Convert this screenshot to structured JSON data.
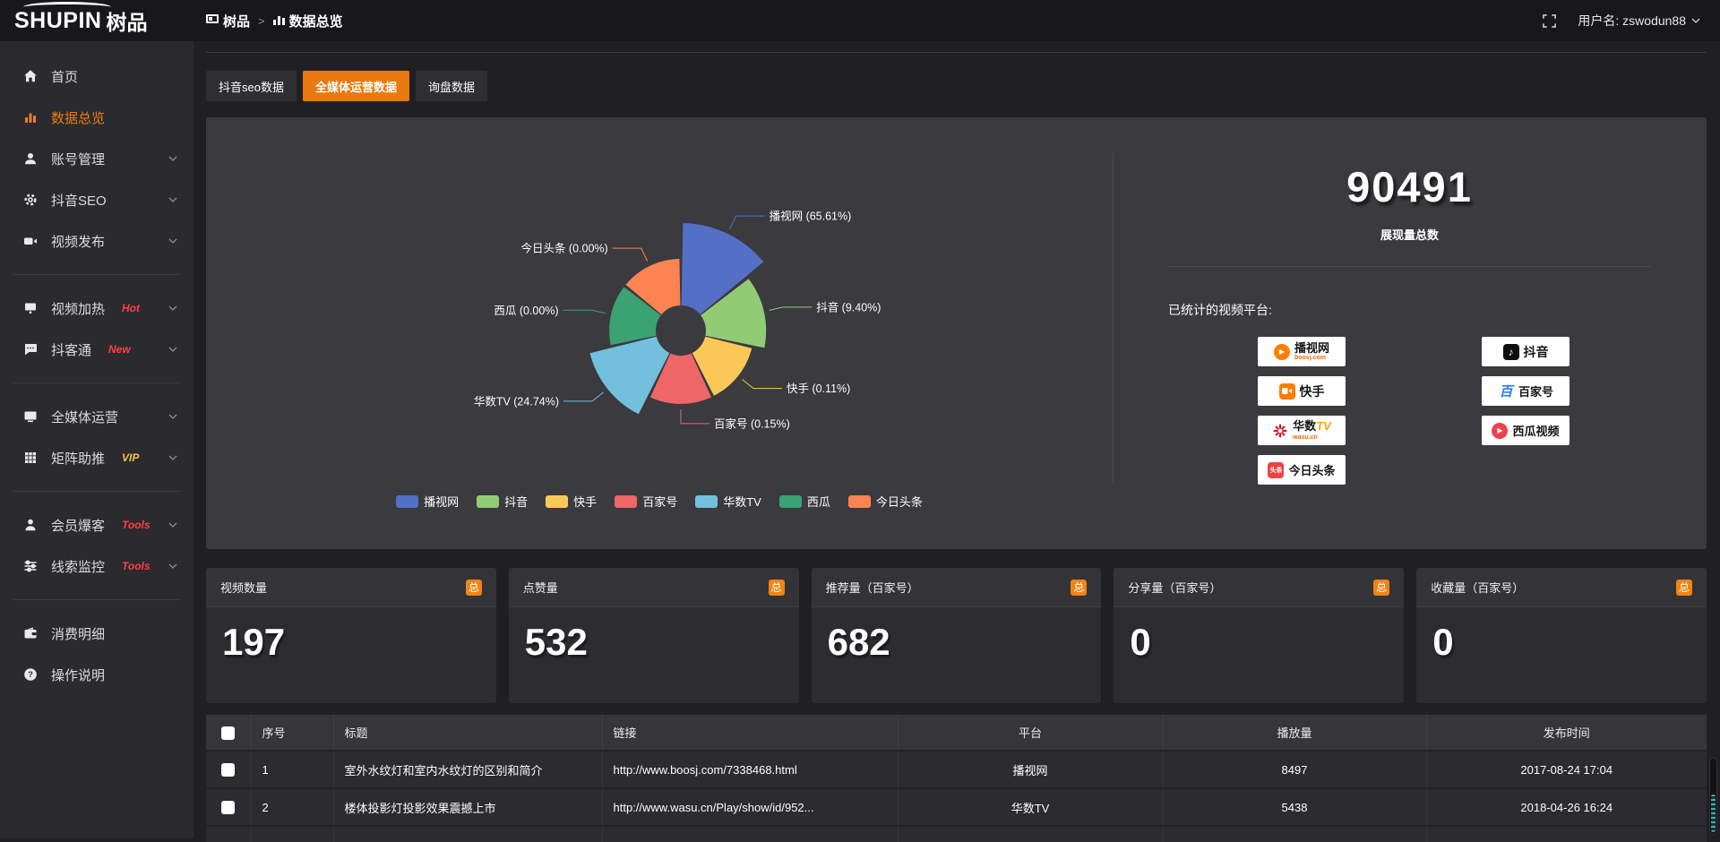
{
  "topbar": {
    "logo_en": "SHUPIN",
    "logo_cn": "树品",
    "breadcrumb": {
      "app": "树品",
      "sep": ">",
      "page": "数据总览"
    },
    "username": "用户名: zswodun88"
  },
  "sidebar": {
    "items": [
      {
        "label": "首页"
      },
      {
        "label": "数据总览"
      },
      {
        "label": "账号管理"
      },
      {
        "label": "抖音SEO"
      },
      {
        "label": "视频发布"
      },
      {
        "label": "视频加热",
        "badge": "Hot"
      },
      {
        "label": "抖客通",
        "badge": "New"
      },
      {
        "label": "全媒体运营"
      },
      {
        "label": "矩阵助推",
        "badge": "VIP"
      },
      {
        "label": "会员爆客",
        "badge": "Tools"
      },
      {
        "label": "线索监控",
        "badge": "Tools"
      },
      {
        "label": "消费明细"
      },
      {
        "label": "操作说明"
      }
    ]
  },
  "tabs": [
    {
      "label": "抖音seo数据"
    },
    {
      "label": "全媒体运营数据"
    },
    {
      "label": "询盘数据"
    }
  ],
  "chart_data": {
    "type": "pie",
    "variant": "nightingale-rose",
    "title": "",
    "categories": [
      "播视网",
      "抖音",
      "快手",
      "百家号",
      "华数TV",
      "西瓜",
      "今日头条"
    ],
    "values": [
      65.61,
      9.4,
      0.11,
      0.15,
      24.74,
      0.0,
      0.0
    ],
    "unit": "%",
    "labels": [
      "播视网 (65.61%)",
      "抖音 (9.40%)",
      "快手 (0.11%)",
      "百家号 (0.15%)",
      "华数TV (24.74%)",
      "西瓜 (0.00%)",
      "今日头条 (0.00%)"
    ],
    "colors": [
      "#5470c6",
      "#91cc75",
      "#fac858",
      "#ee6666",
      "#73c0de",
      "#3ba272",
      "#fc8452"
    ],
    "legend_position": "bottom",
    "start_angle_deg": 0,
    "clockwise": true
  },
  "summary": {
    "total_value": "90491",
    "total_label": "展现量总数",
    "platforms_label": "已统计的视频平台:",
    "platform_badges": {
      "col1": [
        {
          "name": "播视网",
          "sub": "boosj.com"
        },
        {
          "name": "快手"
        },
        {
          "name1": "华数",
          "name2": "TV",
          "sub": "wasu.cn"
        },
        {
          "name": "今日头条",
          "icon_text": "头条"
        }
      ],
      "col2": [
        {
          "name": "抖音",
          "icon_text": "♪"
        },
        {
          "name": "百家号",
          "icon_text": "百"
        },
        {
          "name": "西瓜视频"
        }
      ]
    }
  },
  "stat_cards": [
    {
      "title": "视频数量",
      "badge": "总",
      "value": "197"
    },
    {
      "title": "点赞量",
      "badge": "总",
      "value": "532"
    },
    {
      "title": "推荐量（百家号）",
      "badge": "总",
      "value": "682"
    },
    {
      "title": "分享量（百家号）",
      "badge": "总",
      "value": "0"
    },
    {
      "title": "收藏量（百家号）",
      "badge": "总",
      "value": "0"
    }
  ],
  "table": {
    "headers": {
      "no": "序号",
      "title": "标题",
      "link": "链接",
      "platform": "平台",
      "plays": "播放量",
      "time": "发布时间"
    },
    "rows": [
      {
        "no": "1",
        "title": "室外水纹灯和室内水纹灯的区别和简介",
        "link": "http://www.boosj.com/7338468.html",
        "platform": "播视网",
        "plays": "8497",
        "time": "2017-08-24 17:04"
      },
      {
        "no": "2",
        "title": "楼体投影灯投影效果震撼上市",
        "link": "http://www.wasu.cn/Play/show/id/952...",
        "platform": "华数TV",
        "plays": "5438",
        "time": "2018-04-26 16:24"
      }
    ]
  },
  "colors": {
    "accent": "#e8790e",
    "badge_orange": "#f08414",
    "link_orange": "#e8821e",
    "hot_red": "#ff4043",
    "vip_gold": "#f6c343"
  }
}
